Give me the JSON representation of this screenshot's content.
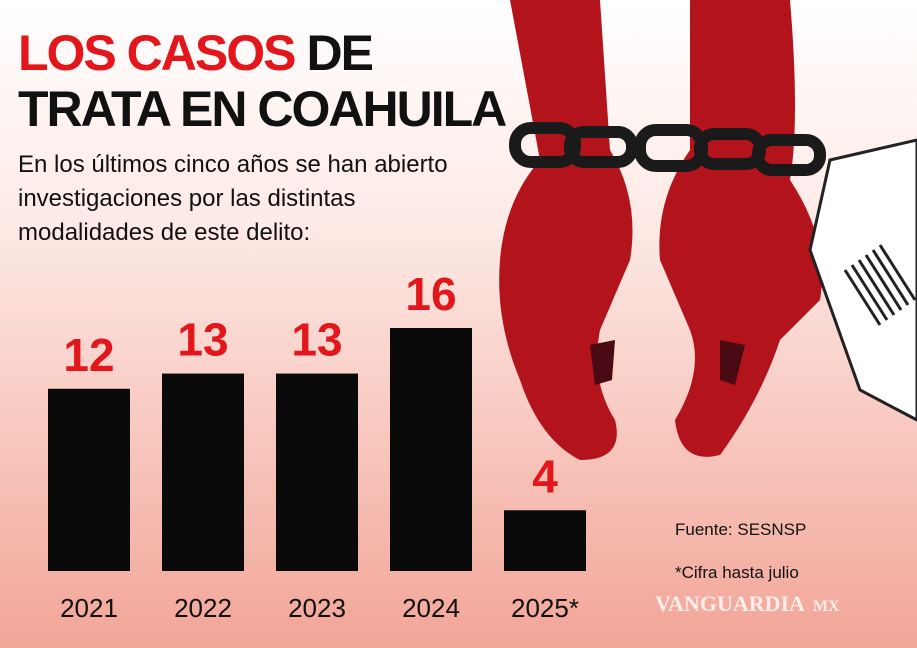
{
  "chart_data": {
    "type": "bar",
    "title": [
      "LOS CASOS",
      "DE",
      "TRATA EN COAHUILA"
    ],
    "title_highlight_color": "#e3161b",
    "subtitle": [
      "En los últimos cinco años se han abierto",
      "investigaciones por las distintas",
      "modalidades de este delito:"
    ],
    "categories": [
      "2021",
      "2022",
      "2023",
      "2024",
      "2025*"
    ],
    "values": [
      12,
      13,
      13,
      16,
      4
    ],
    "color": "#0a0a0a",
    "value_label_color": "#e3161b",
    "source": "Fuente: SESNSP",
    "note": "*Cifra hasta julio",
    "watermark": [
      "VANGUARDIA",
      "MX"
    ]
  }
}
